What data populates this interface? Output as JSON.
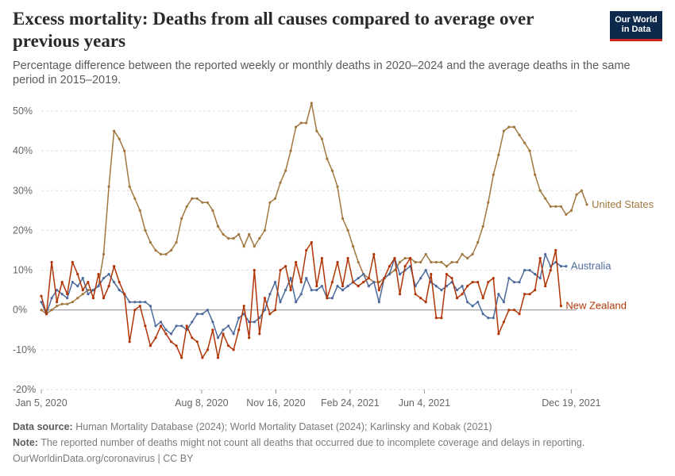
{
  "header": {
    "title": "Excess mortality: Deaths from all causes compared to average over previous years",
    "subtitle": "Percentage difference between the reported weekly or monthly deaths in 2020–2024 and the average deaths in the same period in 2015–2019.",
    "logo_line1": "Our World",
    "logo_line2": "in Data"
  },
  "footer": {
    "source_label": "Data source:",
    "source_text": "Human Mortality Database (2024); World Mortality Dataset (2024); Karlinsky and Kobak (2021)",
    "note_label": "Note:",
    "note_text": "The reported number of deaths might not count all deaths that occurred due to incomplete coverage and delays in reporting.",
    "url": "OurWorldinData.org/coronavirus | CC BY"
  },
  "colors": {
    "united_states": "#a2773f",
    "australia": "#4c6a9c",
    "new_zealand": "#b13507",
    "grid": "#dddddd",
    "zero_line": "#8a8a8a",
    "axis_text": "#666666"
  },
  "chart_data": {
    "type": "line",
    "x_start": "2020-01-05",
    "x_step_days": 7,
    "xlim": [
      "2020-01-05",
      "2021-12-26"
    ],
    "ylim": [
      -20,
      50
    ],
    "yticks": [
      -20,
      -10,
      0,
      10,
      20,
      30,
      40,
      50
    ],
    "ytick_labels": [
      "-20%",
      "-10%",
      "0%",
      "10%",
      "20%",
      "30%",
      "40%",
      "50%"
    ],
    "xticks": [
      "2020-01-05",
      "2020-08-08",
      "2020-11-16",
      "2021-02-24",
      "2021-06-04",
      "2021-12-19"
    ],
    "xtick_labels": [
      "Jan 5, 2020",
      "Aug 8, 2020",
      "Nov 16, 2020",
      "Feb 24, 2021",
      "Jun 4, 2021",
      "Dec 19, 2021"
    ],
    "grid": "horizontal dashed",
    "legend": "inline labels at right end of each line",
    "series": [
      {
        "name": "United States",
        "values": [
          0,
          -1,
          0,
          1,
          1.5,
          1.5,
          2,
          3,
          4,
          5,
          5,
          6,
          14,
          31,
          45,
          43,
          40,
          31,
          28,
          25,
          20,
          17,
          15,
          14,
          14,
          15,
          17,
          23,
          26,
          28,
          28,
          27,
          27,
          25,
          21,
          19,
          18,
          18,
          19,
          16,
          19,
          16,
          18,
          20,
          27,
          28,
          32,
          35,
          40,
          46,
          47,
          47,
          52,
          45,
          43,
          38,
          35,
          31,
          23,
          20,
          16,
          12,
          9,
          8,
          7,
          7,
          8,
          9,
          10,
          12,
          13,
          13,
          12,
          12,
          14,
          12,
          12,
          12,
          11,
          12,
          12,
          14,
          13,
          14,
          17,
          21,
          27,
          34,
          39,
          45,
          46,
          46,
          44,
          42,
          40,
          34,
          30,
          28,
          26,
          26,
          26,
          24,
          25,
          29,
          30,
          26.5
        ]
      },
      {
        "name": "Australia",
        "values": [
          2,
          -1,
          3,
          5,
          4,
          3,
          7,
          6,
          8,
          4,
          5,
          6,
          8,
          9,
          7,
          5,
          4,
          2,
          2,
          2,
          2,
          1,
          -4,
          -3,
          -5,
          -6,
          -4,
          -4,
          -5,
          -3,
          -1,
          -1,
          0,
          -3,
          -7,
          -5,
          -4,
          -6,
          -2,
          -1,
          -3,
          -3,
          -2,
          0,
          4,
          7,
          2,
          5,
          8,
          2,
          4,
          8,
          5,
          5,
          6,
          3,
          3,
          6,
          5,
          6,
          7,
          8,
          9,
          6,
          7,
          2,
          8,
          9,
          13,
          9,
          10,
          11,
          6,
          8,
          10,
          7,
          6,
          5,
          6,
          7,
          5,
          6,
          2,
          1,
          2,
          -1,
          -2,
          -2,
          4,
          2,
          8,
          7,
          7,
          10,
          10,
          9,
          8,
          14,
          11,
          12,
          11,
          11
        ]
      },
      {
        "name": "New Zealand",
        "values": [
          3.5,
          -1,
          12,
          2,
          7,
          4,
          12,
          9,
          5,
          7,
          3,
          9,
          3,
          6,
          11,
          7,
          4,
          -8,
          0,
          1,
          -4,
          -9,
          -7,
          -4,
          -6,
          -8,
          -9,
          -12,
          -4,
          -7,
          -8,
          -12,
          -10,
          -5,
          -12,
          -6,
          -9,
          -10,
          -5,
          1,
          -7,
          10,
          -6,
          3,
          -1,
          0,
          10,
          11,
          5,
          12,
          7,
          15,
          17,
          6,
          13,
          3,
          7,
          12,
          6,
          13,
          7,
          6,
          7,
          8,
          14,
          5,
          8,
          11,
          13,
          4,
          11,
          13,
          4,
          3,
          2,
          9,
          -2,
          -2,
          9,
          8,
          3,
          4,
          6,
          7,
          7,
          3,
          7,
          8,
          -6,
          -3,
          0,
          0,
          -1,
          4,
          4,
          5,
          13,
          6,
          10,
          15,
          1
        ]
      }
    ]
  }
}
